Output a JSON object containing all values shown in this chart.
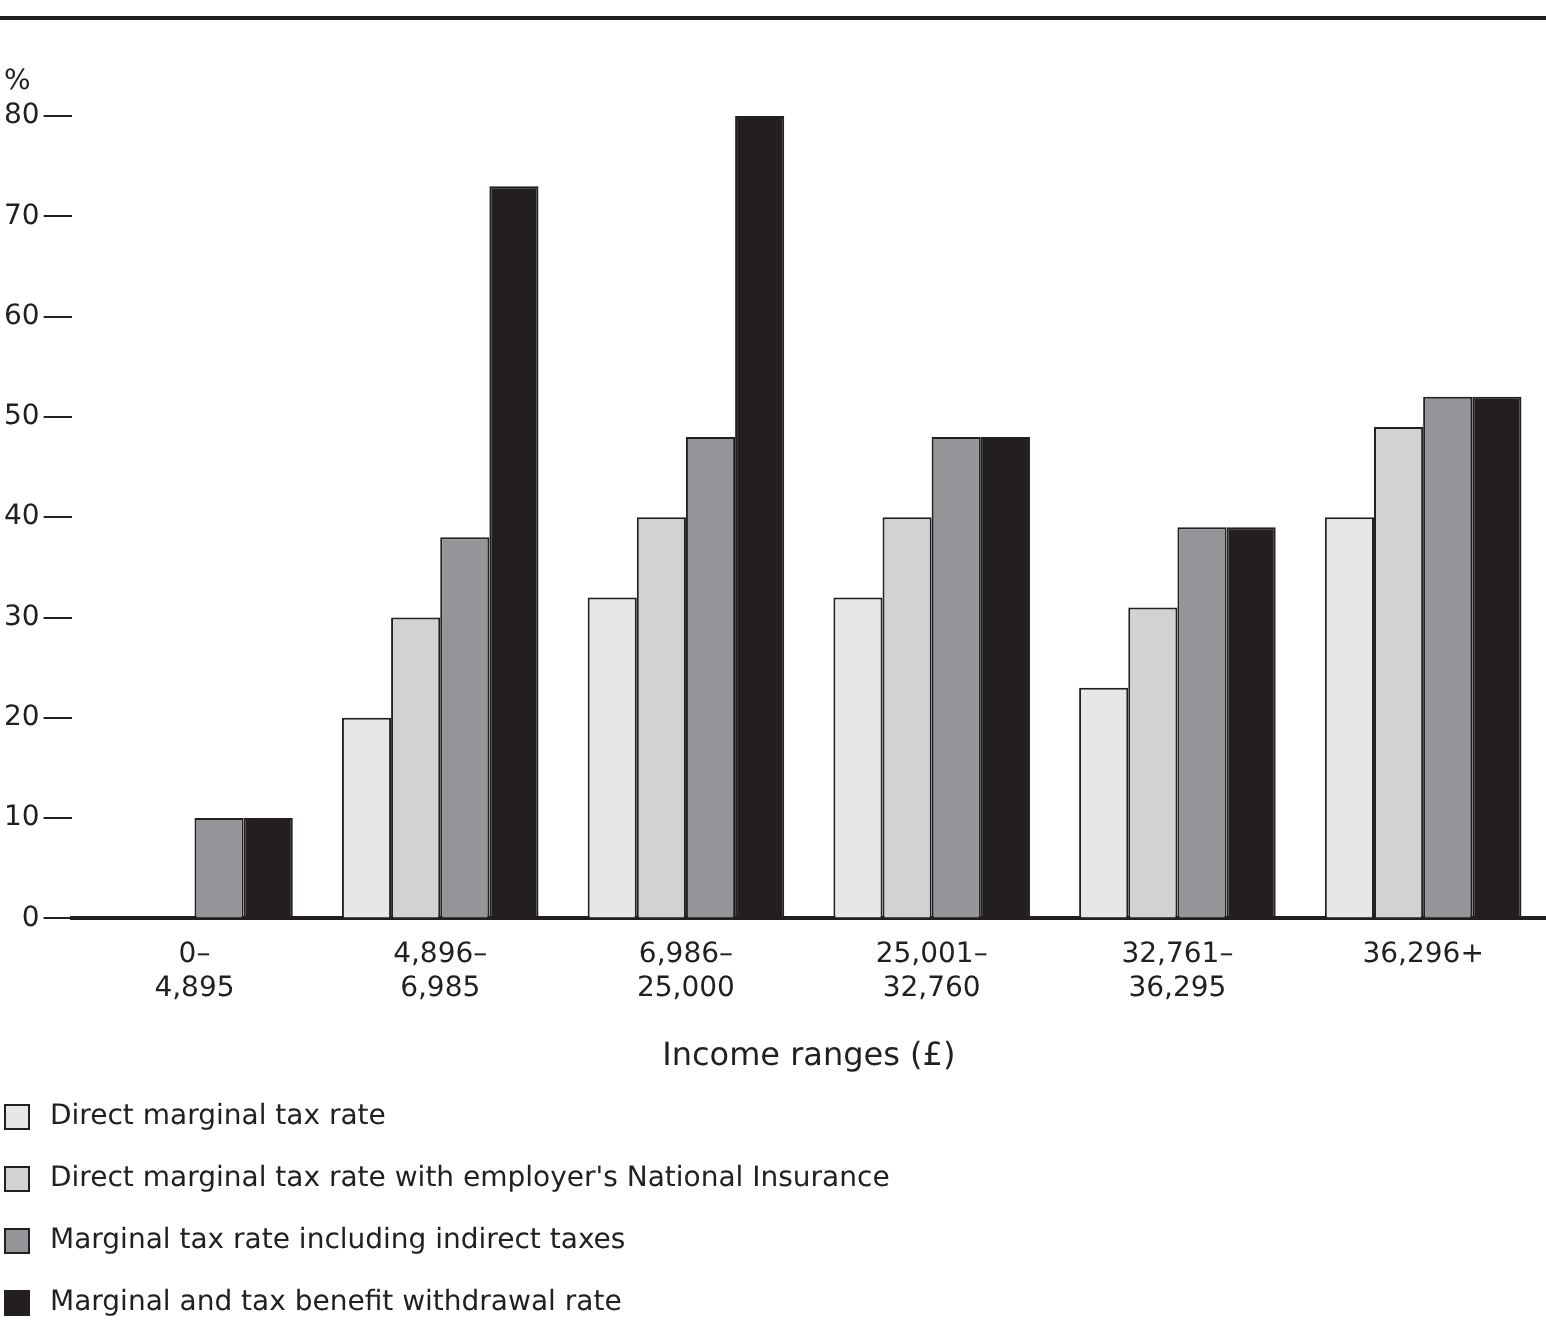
{
  "chart_data": {
    "type": "bar",
    "ylabel": "%",
    "xlabel": "Income ranges (£)",
    "categories": [
      "0–4,895",
      "4,896–6,985",
      "6,986–25,000",
      "25,001–32,760",
      "32,761–36,295",
      "36,296+"
    ],
    "series": [
      {
        "name": "Direct marginal tax rate",
        "color": "#e6e7e8",
        "values": [
          0,
          20,
          32,
          32,
          23,
          40
        ]
      },
      {
        "name": "Direct marginal tax rate with employer's National Insurance",
        "color": "#d1d2d4",
        "values": [
          0,
          30,
          40,
          40,
          31,
          49
        ]
      },
      {
        "name": "Marginal tax rate including indirect taxes",
        "color": "#939598",
        "values": [
          10,
          38,
          48,
          48,
          39,
          52
        ]
      },
      {
        "name": "Marginal and tax benefit withdrawal rate",
        "color": "#231f20",
        "values": [
          10,
          73,
          80,
          48,
          39,
          52
        ]
      }
    ],
    "ylim": [
      0,
      80
    ],
    "yticks": [
      0,
      10,
      20,
      30,
      40,
      50,
      60,
      70,
      80
    ],
    "grid": false,
    "legend": "bottom"
  }
}
